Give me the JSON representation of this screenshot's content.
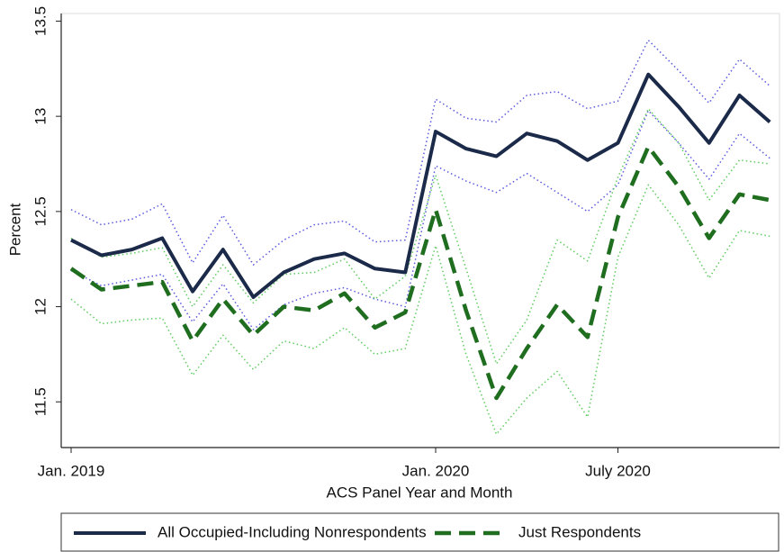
{
  "chart_data": {
    "type": "line",
    "xlabel": "ACS Panel Year and Month",
    "ylabel": "Percent",
    "categories": [
      "Jan. 2019",
      null,
      null,
      null,
      null,
      null,
      null,
      null,
      null,
      null,
      null,
      null,
      "Jan. 2020",
      null,
      null,
      null,
      null,
      null,
      "July 2020",
      null,
      null,
      null,
      null,
      null
    ],
    "ylim": [
      11.26,
      13.54
    ],
    "yticks": [
      11.5,
      12,
      12.5,
      13,
      13.5
    ],
    "series": [
      {
        "name": "All Occupied-Including Nonrespondents",
        "color": "#1c2a4a",
        "style": "solid",
        "values": [
          12.35,
          12.27,
          12.3,
          12.36,
          12.08,
          12.3,
          12.05,
          12.18,
          12.25,
          12.28,
          12.2,
          12.18,
          12.92,
          12.83,
          12.79,
          12.91,
          12.87,
          12.77,
          12.86,
          13.22,
          13.05,
          12.86,
          13.11,
          12.97
        ]
      },
      {
        "name": "Just Respondents",
        "color": "#1f6e1f",
        "style": "dash",
        "values": [
          12.2,
          12.09,
          12.11,
          12.13,
          11.82,
          12.04,
          11.85,
          12.0,
          11.98,
          12.07,
          11.89,
          11.97,
          12.51,
          11.98,
          11.52,
          11.78,
          12.01,
          11.84,
          12.47,
          12.84,
          12.63,
          12.36,
          12.59,
          12.56
        ]
      }
    ],
    "bands": [
      {
        "color": "#5a5ae0",
        "style": "dot",
        "values": [
          12.51,
          12.43,
          12.46,
          12.54,
          12.23,
          12.48,
          12.22,
          12.35,
          12.43,
          12.45,
          12.34,
          12.35,
          13.09,
          12.99,
          12.97,
          13.11,
          13.13,
          13.04,
          13.08,
          13.4,
          13.24,
          13.07,
          13.3,
          13.16
        ]
      },
      {
        "color": "#5a5ae0",
        "style": "dot",
        "values": [
          12.19,
          12.11,
          12.14,
          12.17,
          11.92,
          12.12,
          11.88,
          12.01,
          12.07,
          12.1,
          12.04,
          12.0,
          12.74,
          12.66,
          12.6,
          12.7,
          12.6,
          12.5,
          12.64,
          13.03,
          12.86,
          12.67,
          12.91,
          12.78
        ]
      },
      {
        "color": "#5fcc5f",
        "style": "dot",
        "values": [
          12.36,
          12.26,
          12.28,
          12.31,
          12.0,
          12.22,
          12.02,
          12.17,
          12.18,
          12.25,
          12.04,
          12.16,
          12.69,
          12.2,
          11.7,
          11.93,
          12.35,
          12.24,
          12.68,
          13.04,
          12.86,
          12.56,
          12.77,
          12.75
        ]
      },
      {
        "color": "#5fcc5f",
        "style": "dot",
        "values": [
          12.04,
          11.91,
          11.93,
          11.94,
          11.64,
          11.85,
          11.67,
          11.82,
          11.78,
          11.89,
          11.75,
          11.78,
          12.32,
          11.75,
          11.33,
          11.52,
          11.66,
          11.42,
          12.26,
          12.64,
          12.43,
          12.15,
          12.4,
          12.37
        ]
      }
    ]
  }
}
